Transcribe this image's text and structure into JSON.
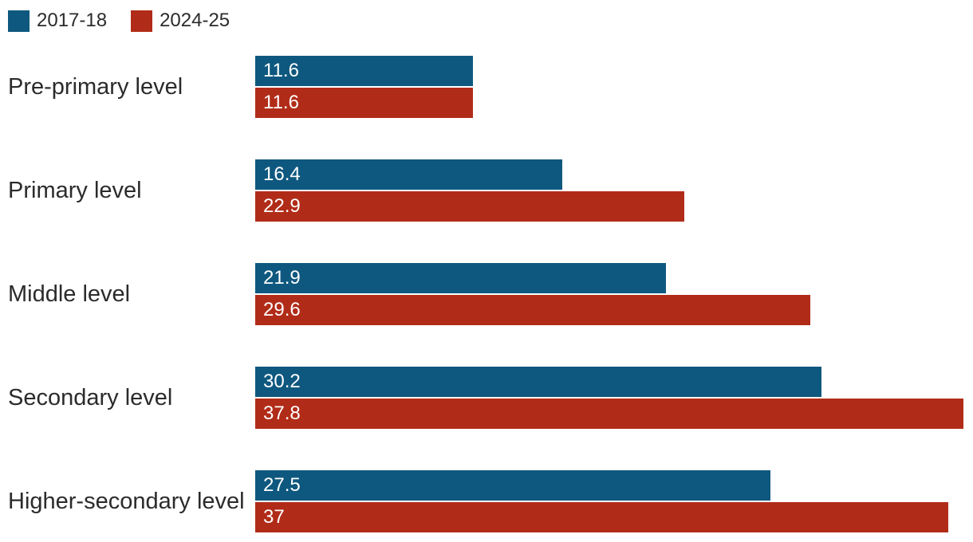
{
  "legend": {
    "items": [
      {
        "label": "2017-18",
        "color": "#0e587f"
      },
      {
        "label": "2024-25",
        "color": "#b12c18"
      }
    ]
  },
  "chart_data": {
    "type": "bar",
    "orientation": "horizontal",
    "title": "",
    "xlabel": "",
    "ylabel": "",
    "categories": [
      "Pre-primary level",
      "Primary level",
      "Middle level",
      "Secondary level",
      "Higher-secondary level"
    ],
    "series": [
      {
        "name": "2017-18",
        "color": "#0e587f",
        "values": [
          11.6,
          16.4,
          21.9,
          30.2,
          27.5
        ],
        "labels": [
          "11.6",
          "16.4",
          "21.9",
          "30.2",
          "27.5"
        ]
      },
      {
        "name": "2024-25",
        "color": "#b12c18",
        "values": [
          11.6,
          22.9,
          29.6,
          37.8,
          37
        ],
        "labels": [
          "11.6",
          "22.9",
          "29.6",
          "37.8",
          "37"
        ]
      }
    ],
    "xlim": [
      0,
      38.3
    ],
    "grid": false,
    "legend_position": "top-left",
    "value_labels_inside_bars": true
  },
  "colors": {
    "background": "#ffffff",
    "label_text": "#2b2b2b",
    "bar_value_text": "#ffffff"
  }
}
